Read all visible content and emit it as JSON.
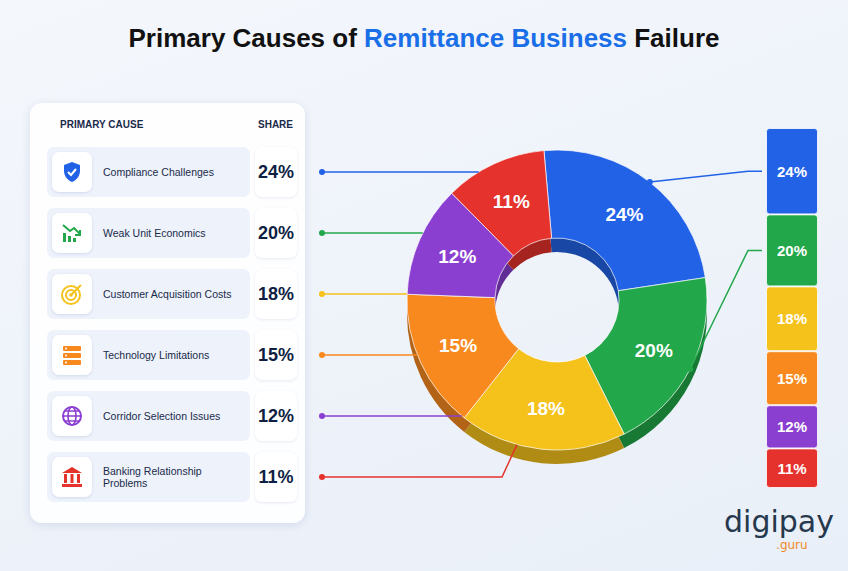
{
  "header": {
    "highlight": "Remittance Business"
  },
  "table": {
    "columns": [
      "PRIMARY CAUSE",
      "SHARE"
    ]
  },
  "logo": {
    "text": "digipay",
    "suffix": ".guru"
  },
  "chart_data": {
    "type": "pie",
    "title": "Primary Causes of Remittance Business Failure",
    "categories": [
      "Compliance Challenges",
      "Weak Unit Economics",
      "Customer Acquisition Costs",
      "Technology Limitations",
      "Corridor Selection Issues",
      "Banking Relationship Problems"
    ],
    "values": [
      24,
      20,
      18,
      15,
      12,
      11
    ],
    "value_labels": [
      "24%",
      "20%",
      "18%",
      "15%",
      "12%",
      "11%"
    ],
    "colors": [
      "#2262e6",
      "#22a84a",
      "#f5c21c",
      "#f7891e",
      "#8a3fd0",
      "#e5322c"
    ],
    "data_labels": true
  }
}
